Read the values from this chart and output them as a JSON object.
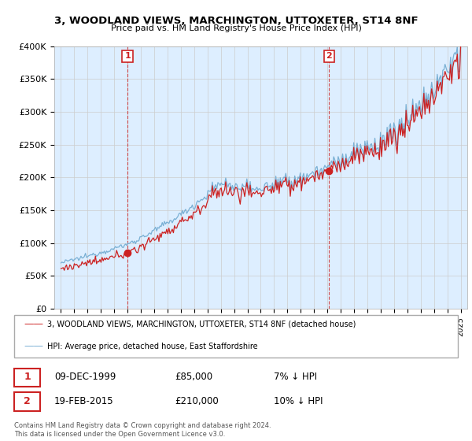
{
  "title": "3, WOODLAND VIEWS, MARCHINGTON, UTTOXETER, ST14 8NF",
  "subtitle": "Price paid vs. HM Land Registry's House Price Index (HPI)",
  "legend_line1": "3, WOODLAND VIEWS, MARCHINGTON, UTTOXETER, ST14 8NF (detached house)",
  "legend_line2": "HPI: Average price, detached house, East Staffordshire",
  "transaction1": {
    "label": "1",
    "date": "09-DEC-1999",
    "price": 85000,
    "hpi_diff": "7% ↓ HPI",
    "x_year": 2000.0
  },
  "transaction2": {
    "label": "2",
    "date": "19-FEB-2015",
    "price": 210000,
    "hpi_diff": "10% ↓ HPI",
    "x_year": 2015.13
  },
  "price_line_color": "#cc2222",
  "hpi_line_color": "#7ab0d4",
  "grid_color": "#cccccc",
  "background_color": "#ffffff",
  "plot_bg_color": "#ddeeff",
  "ylim": [
    0,
    400000
  ],
  "yticks": [
    0,
    50000,
    100000,
    150000,
    200000,
    250000,
    300000,
    350000,
    400000
  ],
  "xlim_start": 1994.5,
  "xlim_end": 2025.5,
  "footer": "Contains HM Land Registry data © Crown copyright and database right 2024.\nThis data is licensed under the Open Government Licence v3.0."
}
